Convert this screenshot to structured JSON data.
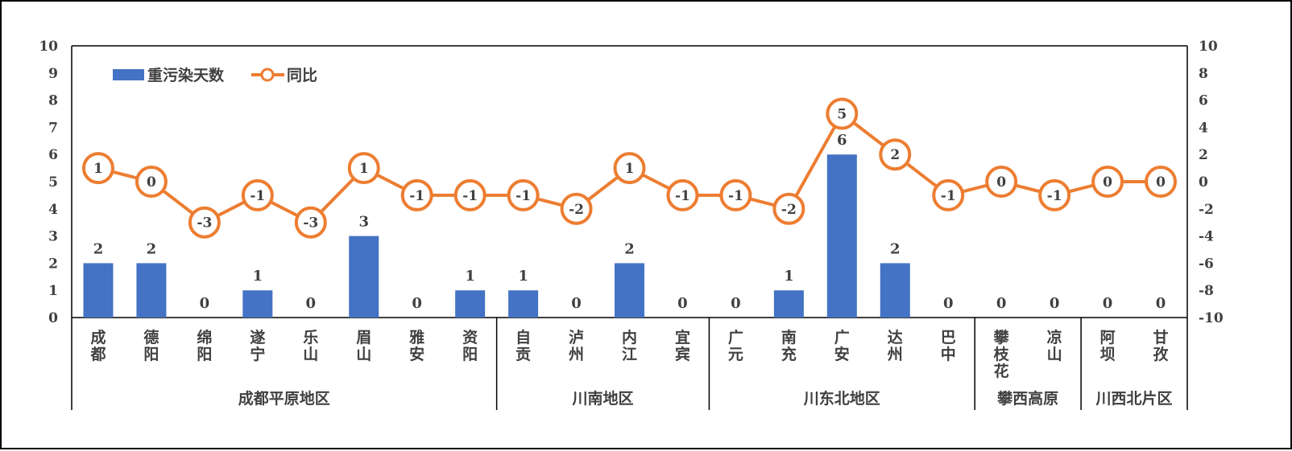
{
  "chart_data": {
    "type": "bar",
    "categories": [
      "成都",
      "德阳",
      "绵阳",
      "遂宁",
      "乐山",
      "眉山",
      "雅安",
      "资阳",
      "自贡",
      "泸州",
      "内江",
      "宜宾",
      "广元",
      "南充",
      "广安",
      "达州",
      "巴中",
      "攀枝花",
      "凉山",
      "阿坝",
      "甘孜"
    ],
    "groups": [
      {
        "name": "成都平原地区",
        "count": 8
      },
      {
        "name": "川南地区",
        "count": 4
      },
      {
        "name": "川东北地区",
        "count": 5
      },
      {
        "name": "攀西高原",
        "count": 2
      },
      {
        "name": "川西北片区",
        "count": 2
      }
    ],
    "series": [
      {
        "name": "重污染天数",
        "type": "bar",
        "axis": "left",
        "color": "#4472C4",
        "values": [
          2,
          2,
          0,
          1,
          0,
          3,
          0,
          1,
          1,
          0,
          2,
          0,
          0,
          1,
          6,
          2,
          0,
          0,
          0,
          0,
          0
        ]
      },
      {
        "name": "同比",
        "type": "line",
        "axis": "right",
        "color": "#ED7D31",
        "values": [
          1,
          0,
          -3,
          -1,
          -3,
          1,
          -1,
          -1,
          -1,
          -2,
          1,
          -1,
          -1,
          -2,
          5,
          2,
          -1,
          0,
          -1,
          0,
          0
        ]
      }
    ],
    "left_axis": {
      "ylim": [
        0,
        10
      ],
      "ticks": [
        0,
        1,
        2,
        3,
        4,
        5,
        6,
        7,
        8,
        9,
        10
      ]
    },
    "right_axis": {
      "ylim": [
        -10,
        10
      ],
      "ticks": [
        -10,
        -8,
        -6,
        -4,
        -2,
        0,
        2,
        4,
        6,
        8,
        10
      ]
    },
    "legend": {
      "position": "top-left"
    },
    "grid": false
  }
}
